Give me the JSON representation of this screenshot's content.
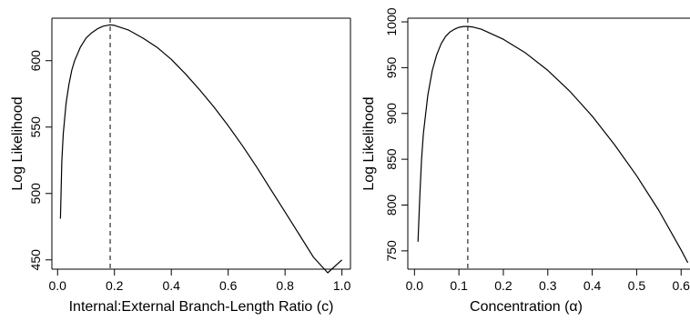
{
  "chart_data": [
    {
      "type": "line",
      "xlabel": "Internal:External Branch-Length Ratio (c)",
      "ylabel": "Log Likelihood",
      "xlim": [
        -0.02,
        1.03
      ],
      "ylim": [
        443,
        632
      ],
      "xticks": [
        0.0,
        0.2,
        0.4,
        0.6,
        0.8,
        1.0
      ],
      "xtick_labels": [
        "0.0",
        "0.2",
        "0.4",
        "0.6",
        "0.8",
        "1.0"
      ],
      "yticks": [
        450,
        500,
        550,
        600
      ],
      "ytick_labels": [
        "450",
        "500",
        "550",
        "600"
      ],
      "vline_x": 0.185,
      "grid": false,
      "series": [
        {
          "x": [
            0.01,
            0.015,
            0.02,
            0.03,
            0.04,
            0.05,
            0.06,
            0.08,
            0.1,
            0.12,
            0.14,
            0.16,
            0.185,
            0.2,
            0.25,
            0.3,
            0.35,
            0.4,
            0.45,
            0.5,
            0.55,
            0.6,
            0.65,
            0.7,
            0.75,
            0.8,
            0.85,
            0.9,
            0.95,
            1.0
          ],
          "values": [
            481,
            524,
            545,
            568,
            582,
            593,
            600,
            610,
            617,
            621,
            624,
            626,
            627,
            626.6,
            623,
            617,
            610,
            601,
            590,
            578,
            565,
            551,
            536,
            520,
            503,
            486,
            469,
            452,
            440,
            450
          ]
        }
      ]
    },
    {
      "type": "line",
      "xlabel": "Concentration (α)",
      "ylabel": "Log Likelihood",
      "xlim": [
        -0.015,
        0.62
      ],
      "ylim": [
        730,
        1004
      ],
      "xticks": [
        0.0,
        0.1,
        0.2,
        0.3,
        0.4,
        0.5,
        0.6
      ],
      "xtick_labels": [
        "0.0",
        "0.1",
        "0.2",
        "0.3",
        "0.4",
        "0.5",
        "0.6"
      ],
      "yticks": [
        750,
        800,
        850,
        900,
        950,
        1000
      ],
      "ytick_labels": [
        "750",
        "800",
        "850",
        "900",
        "950",
        "1000"
      ],
      "vline_x": 0.12,
      "grid": false,
      "series": [
        {
          "x": [
            0.008,
            0.012,
            0.016,
            0.02,
            0.03,
            0.04,
            0.05,
            0.06,
            0.07,
            0.08,
            0.09,
            0.1,
            0.11,
            0.12,
            0.13,
            0.15,
            0.2,
            0.25,
            0.3,
            0.35,
            0.4,
            0.45,
            0.5,
            0.55,
            0.6,
            0.615
          ],
          "values": [
            760,
            810,
            850,
            878,
            920,
            947,
            964,
            976,
            984,
            989,
            992,
            994,
            995,
            995,
            994.5,
            992,
            981,
            966,
            947,
            924,
            897,
            866,
            832,
            794,
            751,
            737
          ]
        }
      ]
    }
  ]
}
